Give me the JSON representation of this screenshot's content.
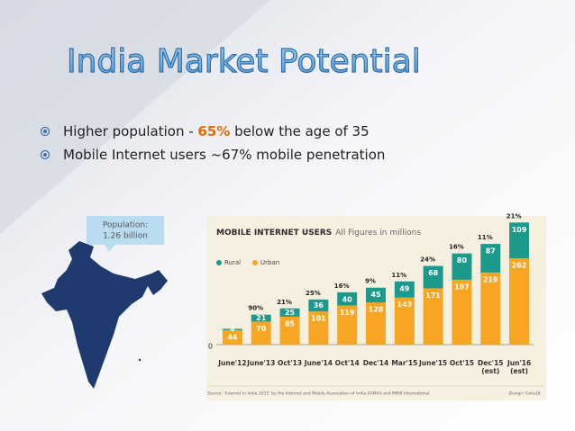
{
  "slide": {
    "title": "India Market Potential",
    "bullets": [
      {
        "parts": [
          "Higher population - ",
          "65%",
          " below the age of 35"
        ]
      },
      {
        "parts": [
          "Mobile Internet users ~67% mobile penetration"
        ]
      }
    ],
    "callout": [
      "Population:",
      "1.26 billion"
    ]
  },
  "chart_data": {
    "type": "stacked-bar",
    "title": "MOBILE INTERNET USERS",
    "subtitle": "All Figures in millions",
    "categories": [
      "June'12",
      "June'13",
      "Oct'13",
      "June'14",
      "Oct'14",
      "Dec'14",
      "Mar'15",
      "June'15",
      "Oct'15",
      "Dec'15",
      "Jun'16"
    ],
    "category_notes": [
      null,
      null,
      null,
      null,
      null,
      null,
      null,
      null,
      null,
      "(est)",
      "(est)"
    ],
    "series": [
      {
        "name": "Rural",
        "color": "#1b9a8c",
        "values": [
          4,
          21,
          25,
          36,
          40,
          45,
          49,
          68,
          80,
          87,
          109
        ]
      },
      {
        "name": "Urban",
        "color": "#f6a623",
        "values": [
          44,
          70,
          85,
          101,
          119,
          128,
          143,
          171,
          197,
          219,
          262
        ]
      }
    ],
    "growth_labels": [
      null,
      "90%",
      "21%",
      "25%",
      "16%",
      "9%",
      "11%",
      "24%",
      "16%",
      "11%",
      "21%"
    ],
    "ylim": [
      0,
      380
    ],
    "yticks": [
      0
    ],
    "source": "Source: 'Internet in India 2015' by the Internet and Mobile Association of India (IAMAI) and IMRB International",
    "credit": "Design: GokuLK"
  }
}
